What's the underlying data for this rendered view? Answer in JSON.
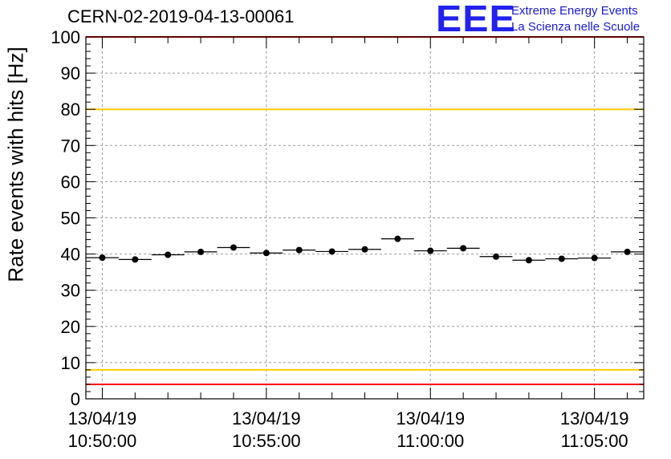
{
  "header": {
    "title": "CERN-02-2019-04-13-00061",
    "logo_mark": "EEE",
    "logo_line1": "Extreme Energy Events",
    "logo_line2": "La Scienza nelle Scuole"
  },
  "chart_data": {
    "type": "scatter",
    "title": "CERN-02-2019-04-13-00061",
    "xlabel": "",
    "ylabel": "Rate events with hits [Hz]",
    "ylim": [
      0,
      100
    ],
    "yticks": [
      0,
      10,
      20,
      30,
      40,
      50,
      60,
      70,
      80,
      90,
      100
    ],
    "xlim": [
      "13/04/19 10:49:30",
      "13/04/19 11:06:30"
    ],
    "xticks": [
      {
        "value": "10:50:00",
        "date": "13/04/19",
        "time": "10:50:00"
      },
      {
        "value": "10:55:00",
        "date": "13/04/19",
        "time": "10:55:00"
      },
      {
        "value": "11:00:00",
        "date": "13/04/19",
        "time": "11:00:00"
      },
      {
        "value": "11:05:00",
        "date": "13/04/19",
        "time": "11:05:00"
      }
    ],
    "grid": true,
    "bin_width_seconds": 60,
    "points": [
      {
        "x": "10:50:00",
        "y": 39.0
      },
      {
        "x": "10:51:00",
        "y": 38.5
      },
      {
        "x": "10:52:00",
        "y": 39.8
      },
      {
        "x": "10:53:00",
        "y": 40.6
      },
      {
        "x": "10:54:00",
        "y": 41.8
      },
      {
        "x": "10:55:00",
        "y": 40.3
      },
      {
        "x": "10:56:00",
        "y": 41.1
      },
      {
        "x": "10:57:00",
        "y": 40.7
      },
      {
        "x": "10:58:00",
        "y": 41.3
      },
      {
        "x": "10:59:00",
        "y": 44.2
      },
      {
        "x": "11:00:00",
        "y": 40.9
      },
      {
        "x": "11:01:00",
        "y": 41.6
      },
      {
        "x": "11:02:00",
        "y": 39.3
      },
      {
        "x": "11:03:00",
        "y": 38.3
      },
      {
        "x": "11:04:00",
        "y": 38.7
      },
      {
        "x": "11:05:00",
        "y": 38.9
      },
      {
        "x": "11:06:00",
        "y": 40.6
      }
    ],
    "reference_lines": [
      {
        "y": 100,
        "color": "#ff0000"
      },
      {
        "y": 80,
        "color": "#ffcc00"
      },
      {
        "y": 8,
        "color": "#ffcc00"
      },
      {
        "y": 4,
        "color": "#ff0000"
      }
    ]
  }
}
